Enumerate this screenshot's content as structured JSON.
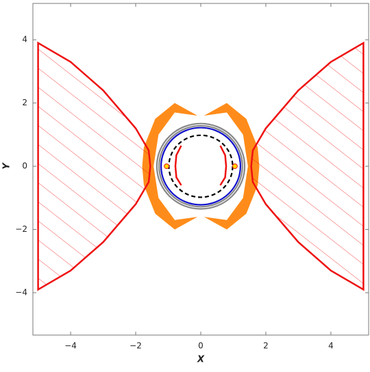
{
  "chart_data": {
    "type": "region",
    "x_label": "X",
    "y_label": "Y",
    "xlim": [
      -5.16,
      5.16
    ],
    "ylim": [
      -5.34,
      5.15
    ],
    "xticks": [
      {
        "value": -4,
        "label": "−4"
      },
      {
        "value": -2,
        "label": "−2"
      },
      0,
      2,
      4
    ],
    "yticks": [
      {
        "value": -4,
        "label": "−4"
      },
      {
        "value": -2,
        "label": "−2"
      },
      0,
      2,
      4
    ],
    "polygons": [
      {
        "color": "#ff8c1a",
        "fill": true,
        "hatch": false,
        "x": [
          -0.1,
          -0.8,
          -1.4,
          -1.75,
          -1.8,
          -1.75,
          -1.4,
          -0.8,
          -0.1,
          -0.8,
          -1.3,
          -1.45,
          -1.3,
          -0.8
        ],
        "y": [
          1.6,
          2.0,
          1.5,
          0.6,
          0,
          -0.6,
          -1.5,
          -2.0,
          -1.6,
          -1.7,
          -1.0,
          0,
          1.0,
          1.7
        ]
      },
      {
        "color": "#ff8c1a",
        "fill": true,
        "hatch": false,
        "x": [
          0.1,
          0.8,
          1.4,
          1.75,
          1.8,
          1.75,
          1.4,
          0.8,
          0.1,
          0.8,
          1.3,
          1.45,
          1.3,
          0.8
        ],
        "y": [
          1.6,
          2.0,
          1.5,
          0.6,
          0,
          -0.6,
          -1.5,
          -2.0,
          -1.6,
          -1.7,
          -1.0,
          0,
          1.0,
          1.7
        ]
      },
      {
        "color": "#ee1111",
        "fill": false,
        "hatch": true,
        "x": [
          -5,
          -4,
          -3,
          -2,
          -1.6,
          -1.55,
          -1.6,
          -2,
          -3,
          -4,
          -5
        ],
        "y": [
          3.9,
          3.3,
          2.4,
          1.2,
          0.5,
          0,
          -0.5,
          -1.2,
          -2.4,
          -3.3,
          -3.9
        ]
      },
      {
        "color": "#ee1111",
        "fill": false,
        "hatch": true,
        "x": [
          5,
          4,
          3,
          2,
          1.6,
          1.55,
          1.6,
          2,
          3,
          4,
          5
        ],
        "y": [
          3.9,
          3.3,
          2.4,
          1.2,
          0.5,
          0,
          -0.5,
          -1.2,
          -2.4,
          -3.3,
          -3.9
        ]
      },
      {
        "color": "#ee1111",
        "fill": false,
        "hatch": false,
        "x": [
          -0.6,
          -0.75,
          -0.78,
          -0.75,
          -0.6
        ],
        "y": [
          0.65,
          0.35,
          0,
          -0.35,
          -0.6
        ]
      },
      {
        "color": "#ee1111",
        "fill": false,
        "hatch": false,
        "x": [
          0.6,
          0.75,
          0.78,
          0.75,
          0.6
        ],
        "y": [
          0.65,
          0.35,
          0,
          -0.35,
          -0.6
        ]
      }
    ],
    "circles": [
      {
        "color": "#888888",
        "center": [
          0,
          0
        ],
        "radius": 1.35,
        "dashed": false
      },
      {
        "color": "#888888",
        "center": [
          0,
          0
        ],
        "radius": 1.28,
        "dashed": false
      },
      {
        "color": "#1111cc",
        "center": [
          0,
          0
        ],
        "radius": 1.22,
        "dashed": false
      },
      {
        "color": "#000000",
        "center": [
          0,
          0
        ],
        "radius": 0.98,
        "dashed": true
      }
    ],
    "points": {
      "color": "#ffd700",
      "x": [
        -1.05,
        1.05
      ],
      "y": [
        0,
        0
      ]
    }
  }
}
